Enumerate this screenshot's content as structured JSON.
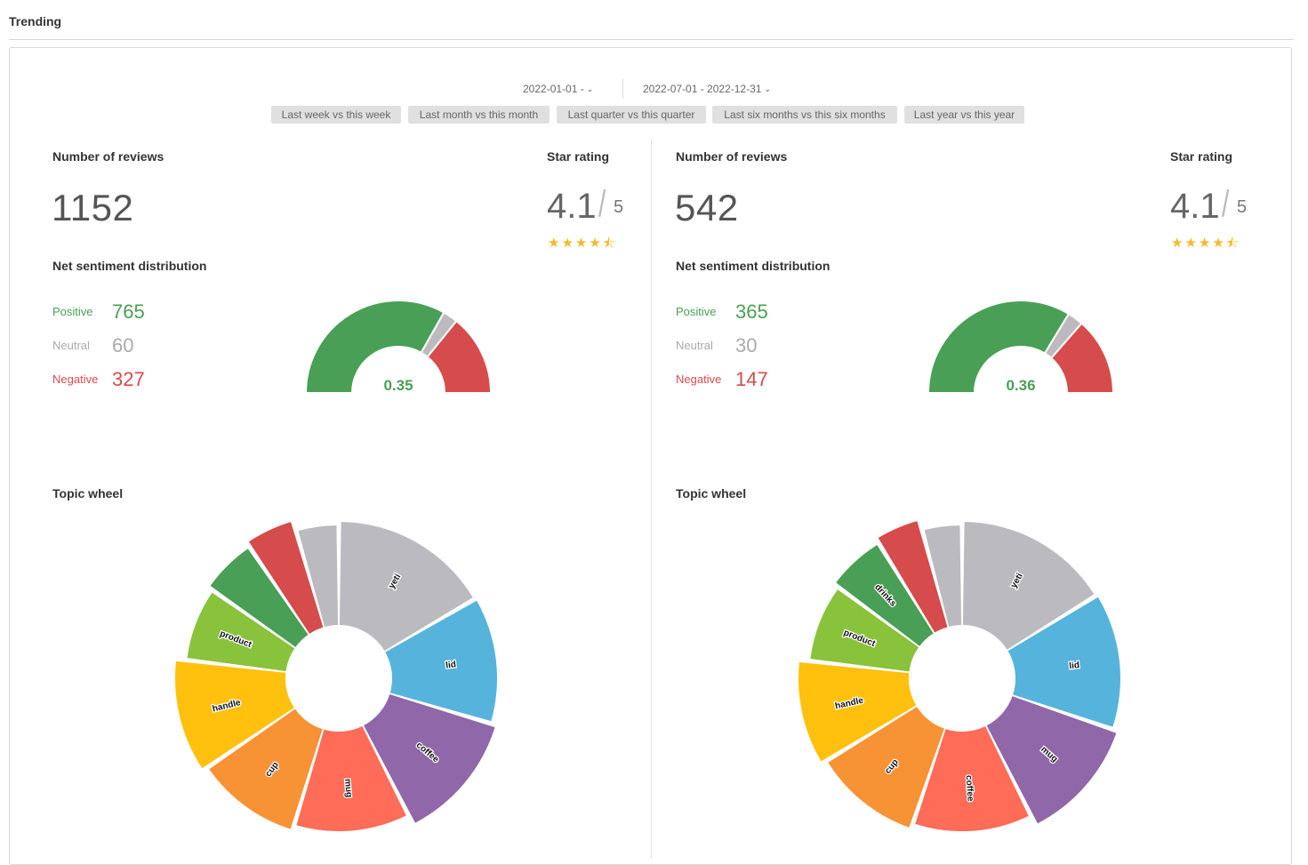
{
  "page": {
    "title": "Trending"
  },
  "date_range": {
    "left": "2022-01-01 -",
    "right": "2022-07-01 - 2022-12-31"
  },
  "presets": [
    "Last week vs this week",
    "Last month vs this month",
    "Last quarter vs this quarter",
    "Last six months vs this six months",
    "Last year vs this year"
  ],
  "colors": {
    "positive": "#4a9f56",
    "neutral": "#bbbbbf",
    "negative": "#d64b4b",
    "star": "#f7b928"
  },
  "panels": [
    {
      "reviews_label": "Number of reviews",
      "reviews_count": "1152",
      "rating_label": "Star rating",
      "rating_value": "4.1",
      "rating_slash": "/",
      "rating_max": "5",
      "stars": "★★★★⯪",
      "sentiment_label": "Net sentiment distribution",
      "positive_label": "Positive",
      "positive": "765",
      "neutral_label": "Neutral",
      "neutral": "60",
      "negative_label": "Negative",
      "negative": "327",
      "score": "0.35",
      "topic_label": "Topic wheel"
    },
    {
      "reviews_label": "Number of reviews",
      "reviews_count": "542",
      "rating_label": "Star rating",
      "rating_value": "4.1",
      "rating_slash": "/",
      "rating_max": "5",
      "stars": "★★★★⯪",
      "sentiment_label": "Net sentiment distribution",
      "positive_label": "Positive",
      "positive": "365",
      "neutral_label": "Neutral",
      "neutral": "30",
      "negative_label": "Negative",
      "negative": "147",
      "score": "0.36",
      "topic_label": "Topic wheel"
    }
  ],
  "chart_data": [
    {
      "type": "pie",
      "chart": "sentiment-gauge-left",
      "categories": [
        "Positive",
        "Neutral",
        "Negative"
      ],
      "values": [
        765,
        60,
        327
      ],
      "colors": [
        "#4a9f56",
        "#bbbbbf",
        "#d64b4b"
      ],
      "annotation": "0.35"
    },
    {
      "type": "pie",
      "chart": "sentiment-gauge-right",
      "categories": [
        "Positive",
        "Neutral",
        "Negative"
      ],
      "values": [
        365,
        30,
        147
      ],
      "colors": [
        "#4a9f56",
        "#bbbbbf",
        "#d64b4b"
      ],
      "annotation": "0.36"
    },
    {
      "type": "pie",
      "chart": "topic-wheel-left",
      "categories": [
        "yeti",
        "lid",
        "coffee",
        "mug",
        "cup",
        "handle",
        "product",
        "",
        "",
        ""
      ],
      "values": [
        16.6,
        13.0,
        12.9,
        12.2,
        10.8,
        11.4,
        7.8,
        5.8,
        5.0,
        4.5
      ],
      "colors": [
        "#bbbbbf",
        "#56b4dc",
        "#9067a8",
        "#ff6c57",
        "#f79235",
        "#ffc10e",
        "#89c23b",
        "#4a9f56",
        "#d64b4b",
        "#bbbbbf"
      ]
    },
    {
      "type": "pie",
      "chart": "topic-wheel-right",
      "categories": [
        "yeti",
        "lid",
        "mug",
        "coffee",
        "cup",
        "handle",
        "product",
        "drinks",
        "",
        ""
      ],
      "values": [
        16.2,
        14.0,
        12.4,
        12.6,
        11.1,
        10.5,
        8.3,
        6.1,
        4.6,
        4.2
      ],
      "colors": [
        "#bbbbbf",
        "#56b4dc",
        "#9067a8",
        "#ff6c57",
        "#f79235",
        "#ffc10e",
        "#89c23b",
        "#4a9f56",
        "#d64b4b",
        "#bbbbbf"
      ]
    }
  ]
}
